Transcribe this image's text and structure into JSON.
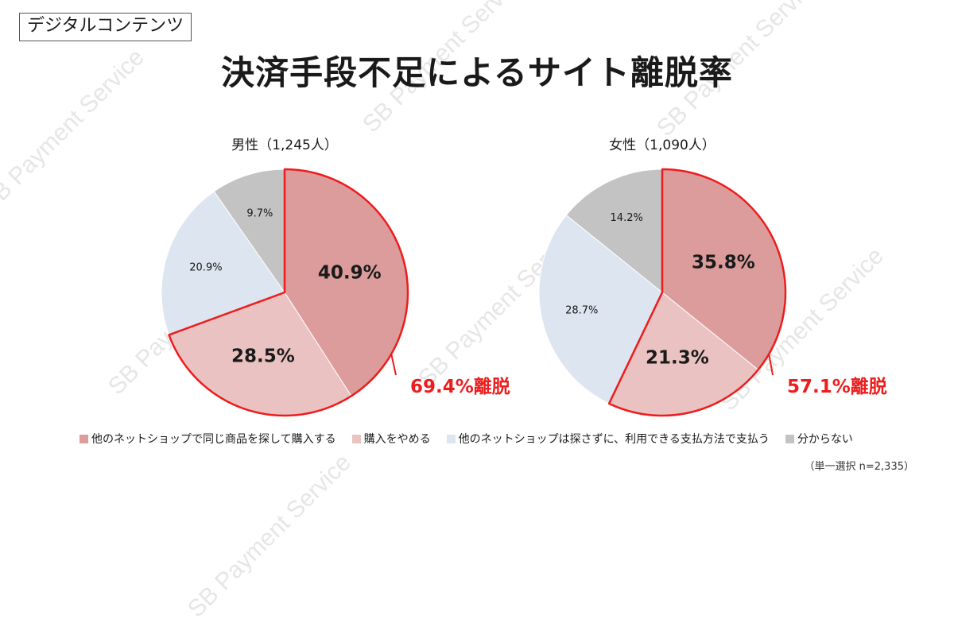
{
  "header": {
    "tag": "デジタルコンテンツ",
    "title": "決済手段不足によるサイト離脱率"
  },
  "watermark_text": "SB Payment Service",
  "colors": {
    "cat1": "#dc9c9c",
    "cat2": "#ebc2c2",
    "cat3": "#dce5f0",
    "cat4": "#c3c3c3",
    "highlight": "#ee1c1c"
  },
  "legend": {
    "items": [
      "他のネットショップで同じ商品を探して購入する",
      "購入をやめる",
      "他のネットショップは探さずに、利用できる支払方法で支払う",
      "分からない"
    ]
  },
  "note": "（単一選択 n=2,335）",
  "chart_data": [
    {
      "type": "pie",
      "title": "男性（1,245人）",
      "categories": [
        "他のネットショップで同じ商品を探して購入する",
        "購入をやめる",
        "他のネットショップは探さずに、利用できる支払方法で支払う",
        "分からない"
      ],
      "values": [
        40.9,
        28.5,
        20.9,
        9.7
      ],
      "labels": [
        "40.9%",
        "28.5%",
        "20.9%",
        "9.7%"
      ],
      "highlight_label": "69.4%離脱"
    },
    {
      "type": "pie",
      "title": "女性（1,090人）",
      "categories": [
        "他のネットショップで同じ商品を探して購入する",
        "購入をやめる",
        "他のネットショップは探さずに、利用できる支払方法で支払う",
        "分からない"
      ],
      "values": [
        35.8,
        21.3,
        28.7,
        14.2
      ],
      "labels": [
        "35.8%",
        "21.3%",
        "28.7%",
        "14.2%"
      ],
      "highlight_label": "57.1%離脱"
    }
  ]
}
